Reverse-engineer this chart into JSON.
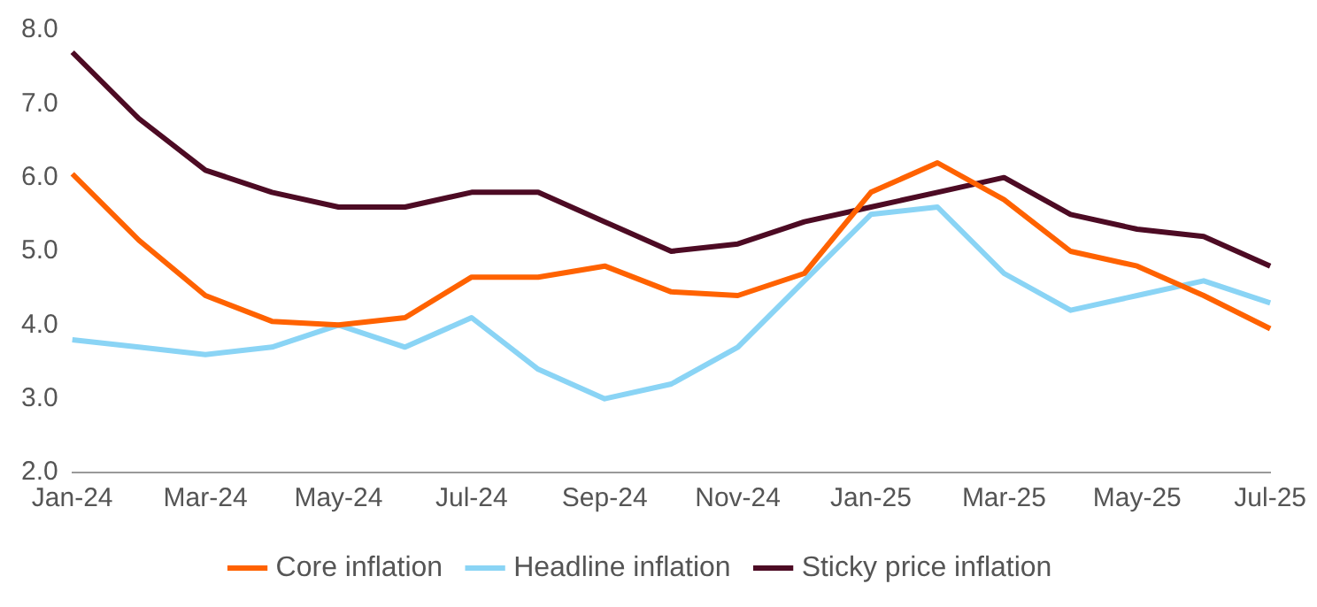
{
  "chart_data": {
    "type": "line",
    "categories": [
      "Jan-24",
      null,
      "Mar-24",
      null,
      "May-24",
      null,
      "Jul-24",
      null,
      "Sep-24",
      null,
      "Nov-24",
      null,
      "Jan-25",
      null,
      "Mar-25",
      null,
      "May-25",
      null,
      "Jul-25"
    ],
    "series": [
      {
        "name": "Core inflation",
        "color": "#ff6200",
        "values": [
          6.05,
          5.15,
          4.4,
          4.05,
          4.0,
          4.1,
          4.65,
          4.65,
          4.8,
          4.45,
          4.4,
          4.7,
          5.8,
          6.2,
          5.7,
          5.0,
          4.8,
          4.4,
          3.95
        ]
      },
      {
        "name": "Headline inflation",
        "color": "#8ad4f5",
        "values": [
          3.8,
          3.7,
          3.6,
          3.7,
          4.0,
          3.7,
          4.1,
          3.4,
          3.0,
          3.2,
          3.7,
          4.6,
          5.5,
          5.6,
          4.7,
          4.2,
          4.4,
          4.6,
          4.3
        ]
      },
      {
        "name": "Sticky price inflation",
        "color": "#4d0b24",
        "values": [
          7.7,
          6.8,
          6.1,
          5.8,
          5.6,
          5.6,
          5.8,
          5.8,
          5.4,
          5.0,
          5.1,
          5.4,
          5.6,
          5.8,
          6.0,
          5.5,
          5.3,
          5.2,
          4.8
        ]
      }
    ],
    "ylim": [
      2,
      8
    ],
    "yticks": [
      {
        "value": 2,
        "label": "2.0"
      },
      {
        "value": 3,
        "label": "3.0"
      },
      {
        "value": 4,
        "label": "4.0"
      },
      {
        "value": 5,
        "label": "5.0"
      },
      {
        "value": 6,
        "label": "6.0"
      },
      {
        "value": 7,
        "label": "7.0"
      },
      {
        "value": 8,
        "label": "8.0"
      }
    ],
    "grid": false,
    "legend": "bottom",
    "marker": "none",
    "line_style": "solid"
  }
}
